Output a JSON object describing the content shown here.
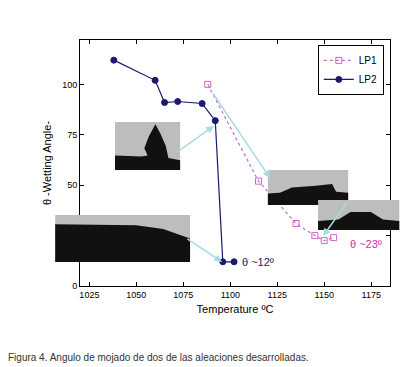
{
  "chart_data": {
    "type": "scatter",
    "x_label": "Temperature ºC",
    "y_label": "θ -Wetting Angle-",
    "caption": "Figura 4. Angulo de mojado de dos de las aleaciones desarrolladas.",
    "xlim": [
      1020,
      1185
    ],
    "xticks": [
      1025,
      1050,
      1075,
      1100,
      1125,
      1150,
      1175
    ],
    "ylim": [
      0,
      122
    ],
    "yticks": [
      0,
      25,
      50,
      75,
      100
    ],
    "grid": false,
    "legend": "upper right",
    "series": [
      {
        "name": "LP1",
        "color": "#cc66cc",
        "marker": "square_open",
        "line_style": "dot",
        "x": [
          1088,
          1115,
          1135,
          1145,
          1150,
          1155
        ],
        "values": [
          100,
          52,
          31,
          25,
          22.5,
          24
        ]
      },
      {
        "name": "LP2",
        "color": "#1a1a6e",
        "marker": "circle",
        "line_style": "solid",
        "x": [
          1038,
          1060,
          1065,
          1072,
          1085,
          1092,
          1096,
          1102
        ],
        "values": [
          112,
          102,
          91,
          91.5,
          90.5,
          82,
          12,
          12
        ]
      }
    ],
    "annotations": [
      {
        "text": "θ ~12º",
        "x": 1115,
        "y": 12,
        "color": "#1a1a6e"
      },
      {
        "text": "θ ~23º",
        "x": 1172,
        "y": 21,
        "color": "#cc3399"
      }
    ]
  }
}
